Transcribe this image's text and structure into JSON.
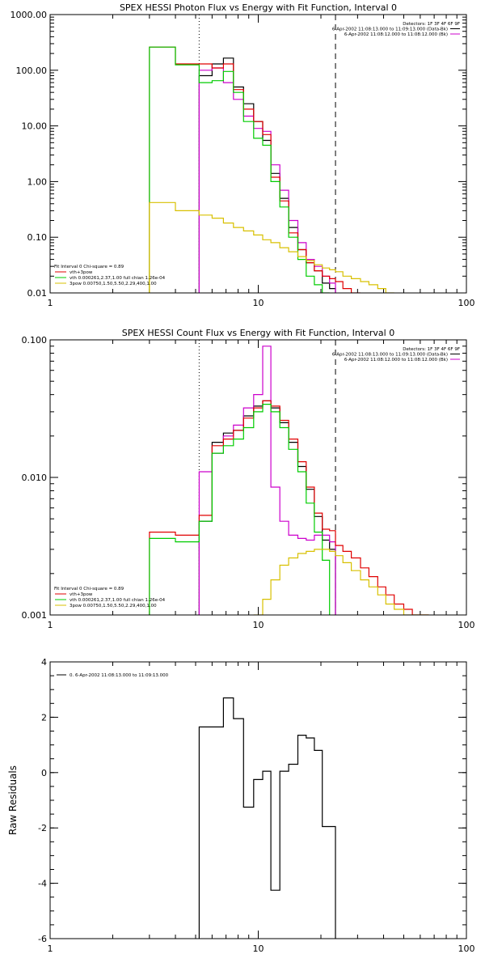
{
  "chart_data": [
    {
      "type": "line",
      "title": "SPEX HESSI Photon Flux vs Energy with Fit Function, Interval 0",
      "xlabel": "",
      "ylabel": "",
      "xscale": "log",
      "yscale": "log",
      "xlim": [
        1,
        100
      ],
      "ylim": [
        0.01,
        1000
      ],
      "xticks": [
        {
          "value": 1,
          "label": "1"
        },
        {
          "value": 10,
          "label": "10"
        },
        {
          "value": 100,
          "label": "100"
        }
      ],
      "yticks": [
        {
          "value": 1000,
          "label": "1000.00"
        },
        {
          "value": 100,
          "label": "100.00"
        },
        {
          "value": 10,
          "label": "10.00"
        },
        {
          "value": 1,
          "label": "1.00"
        },
        {
          "value": 0.1,
          "label": "0.10"
        },
        {
          "value": 0.01,
          "label": "0.01"
        }
      ],
      "vlines": [
        {
          "x": 5.2,
          "style": "dotted",
          "color": "#000000"
        },
        {
          "x": 23.5,
          "style": "dashed",
          "color": "#000000"
        }
      ],
      "legend_top_right": [
        {
          "text": "Detectors: 1F 3F 4F 6F 9F",
          "color": ""
        },
        {
          "text": "6-Apr-2002 11:08:13.000 to 11:09:13.000 (Data-Bk)",
          "color": "#000000"
        },
        {
          "text": "6-Apr-2002 11:08:12.000 to 11:08:12.000 (Bk)",
          "color": "#cc00cc"
        }
      ],
      "legend_bottom_left": [
        {
          "text": "Fit Interval 0   Chi-square = 0.89",
          "color": ""
        },
        {
          "text": "vth+3pow",
          "color": "#e00000"
        },
        {
          "text": "vth 0.000261,2.37,1.00  full chian 1.26e-04",
          "color": "#00cc00"
        },
        {
          "text": "3pow 0.00750,1.50,5.50,2.29,400,1.00",
          "color": "#d8c000"
        }
      ],
      "series": [
        {
          "name": "Data-Bk",
          "color": "#000000",
          "edges": [
            5.2,
            6.0,
            6.8,
            7.6,
            8.5,
            9.5,
            10.5,
            11.5,
            12.7,
            14.0,
            15.5,
            17.0,
            18.6,
            20.3,
            22.0,
            23.5
          ],
          "values": [
            80,
            130,
            165,
            50,
            25,
            12,
            5.5,
            1.4,
            0.5,
            0.15,
            0.06,
            0.035,
            0.025,
            0.015,
            0.012
          ]
        },
        {
          "name": "Bk",
          "color": "#cc00cc",
          "edges": [
            5.2,
            6.0,
            6.8,
            7.6,
            8.5,
            9.5,
            10.5,
            11.5,
            12.7,
            14.0,
            15.5,
            17.0,
            18.6,
            20.3,
            22.0,
            23.5
          ],
          "values": [
            100,
            110,
            60,
            30,
            15,
            9,
            8,
            2,
            0.7,
            0.2,
            0.08,
            0.04,
            0.03,
            0.02,
            0.015
          ]
        },
        {
          "name": "vth+3pow",
          "color": "#e00000",
          "edges": [
            3.0,
            4.0,
            5.2,
            6.0,
            6.8,
            7.6,
            8.5,
            9.5,
            10.5,
            11.5,
            12.7,
            14.0,
            15.5,
            17.0,
            18.6,
            20.3,
            22.0,
            23.5,
            25.5,
            28.0,
            31.0
          ],
          "values": [
            260,
            130,
            130,
            110,
            130,
            45,
            20,
            12,
            7,
            1.2,
            0.45,
            0.12,
            0.06,
            0.035,
            0.025,
            0.02,
            0.018,
            0.016,
            0.012,
            0.01
          ]
        },
        {
          "name": "vth",
          "color": "#00cc00",
          "edges": [
            3.0,
            4.0,
            5.2,
            6.0,
            6.8,
            7.6,
            8.5,
            9.5,
            10.5,
            11.5,
            12.7,
            14.0,
            15.5,
            17.0,
            18.6,
            20.3,
            22.0
          ],
          "values": [
            260,
            125,
            60,
            65,
            95,
            40,
            12,
            6,
            4.5,
            1.0,
            0.35,
            0.1,
            0.04,
            0.02,
            0.014,
            0.01
          ]
        },
        {
          "name": "3pow",
          "color": "#d8c000",
          "edges": [
            3.0,
            4.0,
            5.2,
            6.0,
            6.8,
            7.6,
            8.5,
            9.5,
            10.5,
            11.5,
            12.7,
            14.0,
            15.5,
            17.0,
            18.6,
            20.3,
            22.0,
            23.5,
            25.5,
            28.0,
            31.0,
            34.0,
            37.5,
            41.0,
            45.0
          ],
          "values": [
            0.42,
            0.3,
            0.25,
            0.22,
            0.18,
            0.15,
            0.13,
            0.11,
            0.09,
            0.08,
            0.065,
            0.055,
            0.045,
            0.038,
            0.032,
            0.028,
            0.026,
            0.024,
            0.02,
            0.018,
            0.016,
            0.014,
            0.012,
            0.01
          ]
        }
      ]
    },
    {
      "type": "line",
      "title": "SPEX HESSI Count Flux vs Energy with Fit Function, Interval 0",
      "xlabel": "",
      "ylabel": "",
      "xscale": "log",
      "yscale": "log",
      "xlim": [
        1,
        100
      ],
      "ylim": [
        0.001,
        0.1
      ],
      "xticks": [
        {
          "value": 1,
          "label": "1"
        },
        {
          "value": 10,
          "label": "10"
        },
        {
          "value": 100,
          "label": "100"
        }
      ],
      "yticks": [
        {
          "value": 0.1,
          "label": "0.100"
        },
        {
          "value": 0.01,
          "label": "0.010"
        },
        {
          "value": 0.001,
          "label": "0.001"
        }
      ],
      "vlines": [
        {
          "x": 5.2,
          "style": "dotted",
          "color": "#000000"
        },
        {
          "x": 23.5,
          "style": "dashed",
          "color": "#000000"
        }
      ],
      "legend_top_right": [
        {
          "text": "Detectors: 1F 3F 4F 6F 9F",
          "color": ""
        },
        {
          "text": "6-Apr-2002 11:08:13.000 to 11:09:13.000 (Data-Bk)",
          "color": "#000000"
        },
        {
          "text": "6-Apr-2002 11:08:12.000 to 11:08:12.000 (Bk)",
          "color": "#cc00cc"
        }
      ],
      "legend_bottom_left": [
        {
          "text": "Fit Interval 0   Chi-square = 0.89",
          "color": ""
        },
        {
          "text": "vth+3pow",
          "color": "#e00000"
        },
        {
          "text": "vth 0.000261,2.37,1.00  full chian 1.26e-04",
          "color": "#00cc00"
        },
        {
          "text": "3pow 0.00750,1.50,5.50,2.29,400,1.00",
          "color": "#d8c000"
        }
      ],
      "series": [
        {
          "name": "Data-Bk",
          "color": "#000000",
          "edges": [
            5.2,
            6.0,
            6.8,
            7.6,
            8.5,
            9.5,
            10.5,
            11.5,
            12.7,
            14.0,
            15.5,
            17.0,
            18.6,
            20.3,
            22.0,
            23.5
          ],
          "values": [
            0.0048,
            0.018,
            0.021,
            0.022,
            0.028,
            0.033,
            0.036,
            0.032,
            0.025,
            0.018,
            0.012,
            0.0082,
            0.0052,
            0.0035,
            0.003
          ]
        },
        {
          "name": "Bk",
          "color": "#cc00cc",
          "edges": [
            5.2,
            6.0,
            6.8,
            7.6,
            8.5,
            9.5,
            10.5,
            11.5,
            12.7,
            14.0,
            15.5,
            17.0,
            18.6,
            20.3,
            22.0,
            23.5
          ],
          "values": [
            0.011,
            0.015,
            0.02,
            0.024,
            0.032,
            0.04,
            0.09,
            0.0085,
            0.0048,
            0.0038,
            0.0036,
            0.0035,
            0.0038,
            0.0038,
            0.0034
          ]
        },
        {
          "name": "vth+3pow",
          "color": "#e00000",
          "edges": [
            3.0,
            4.0,
            5.2,
            6.0,
            6.8,
            7.6,
            8.5,
            9.5,
            10.5,
            11.5,
            12.7,
            14.0,
            15.5,
            17.0,
            18.6,
            20.3,
            22.0,
            23.5,
            25.5,
            28.0,
            31.0,
            34.0,
            37.5,
            41.0,
            45.0,
            50.0,
            55.0,
            60.0,
            66.0
          ],
          "values": [
            0.004,
            0.0038,
            0.0053,
            0.017,
            0.019,
            0.022,
            0.027,
            0.032,
            0.036,
            0.033,
            0.026,
            0.019,
            0.013,
            0.0085,
            0.0055,
            0.0042,
            0.0041,
            0.0032,
            0.0029,
            0.0026,
            0.0022,
            0.0019,
            0.0016,
            0.0014,
            0.0012,
            0.0011,
            0.001,
            0.001
          ]
        },
        {
          "name": "vth",
          "color": "#00cc00",
          "edges": [
            3.0,
            4.0,
            5.2,
            6.0,
            6.8,
            7.6,
            8.5,
            9.5,
            10.5,
            11.5,
            12.7,
            14.0,
            15.5,
            17.0,
            18.6,
            20.3,
            22.0
          ],
          "values": [
            0.0036,
            0.0034,
            0.0048,
            0.015,
            0.017,
            0.019,
            0.023,
            0.03,
            0.034,
            0.03,
            0.023,
            0.016,
            0.011,
            0.0065,
            0.004,
            0.0025
          ]
        },
        {
          "name": "3pow",
          "color": "#d8c000",
          "edges": [
            9.5,
            10.5,
            11.5,
            12.7,
            14.0,
            15.5,
            17.0,
            18.6,
            20.3,
            22.0,
            23.5,
            25.5,
            28.0,
            31.0,
            34.0,
            37.5,
            41.0,
            45.0,
            50.0,
            55.0,
            60.0,
            66.0
          ],
          "values": [
            0.001,
            0.0013,
            0.0018,
            0.0023,
            0.0026,
            0.0028,
            0.0029,
            0.003,
            0.003,
            0.0029,
            0.0027,
            0.0024,
            0.0021,
            0.0018,
            0.0016,
            0.0014,
            0.0012,
            0.0011,
            0.001,
            0.001,
            0.001
          ]
        }
      ]
    },
    {
      "type": "line",
      "title": "",
      "xlabel": "",
      "ylabel": "Raw Residuals",
      "xscale": "log",
      "yscale": "linear",
      "xlim": [
        1,
        100
      ],
      "ylim": [
        -6,
        4
      ],
      "xticks": [
        {
          "value": 1,
          "label": "1"
        },
        {
          "value": 10,
          "label": "10"
        },
        {
          "value": 100,
          "label": "100"
        }
      ],
      "yticks": [
        {
          "value": 4,
          "label": "4"
        },
        {
          "value": 2,
          "label": "2"
        },
        {
          "value": 0,
          "label": "0"
        },
        {
          "value": -2,
          "label": "-2"
        },
        {
          "value": -4,
          "label": "-4"
        },
        {
          "value": -6,
          "label": "-6"
        }
      ],
      "vlines": [],
      "legend_top_left": [
        {
          "text": "0. 6-Apr-2002 11:08:13.000 to 11:09:13.000",
          "color": "#000000"
        }
      ],
      "series": [
        {
          "name": "0. 6-Apr-2002 11:08:13.000 to 11:09:13.000",
          "color": "#000000",
          "edges": [
            5.2,
            6.0,
            6.8,
            7.6,
            8.5,
            9.5,
            10.5,
            11.5,
            12.7,
            14.0,
            15.5,
            17.0,
            18.6,
            20.3,
            22.0,
            23.5
          ],
          "values": [
            1.65,
            1.65,
            2.7,
            1.95,
            -1.25,
            -0.25,
            0.05,
            -4.25,
            0.05,
            0.3,
            1.35,
            1.25,
            0.8,
            -1.95,
            -1.95
          ]
        }
      ]
    }
  ]
}
